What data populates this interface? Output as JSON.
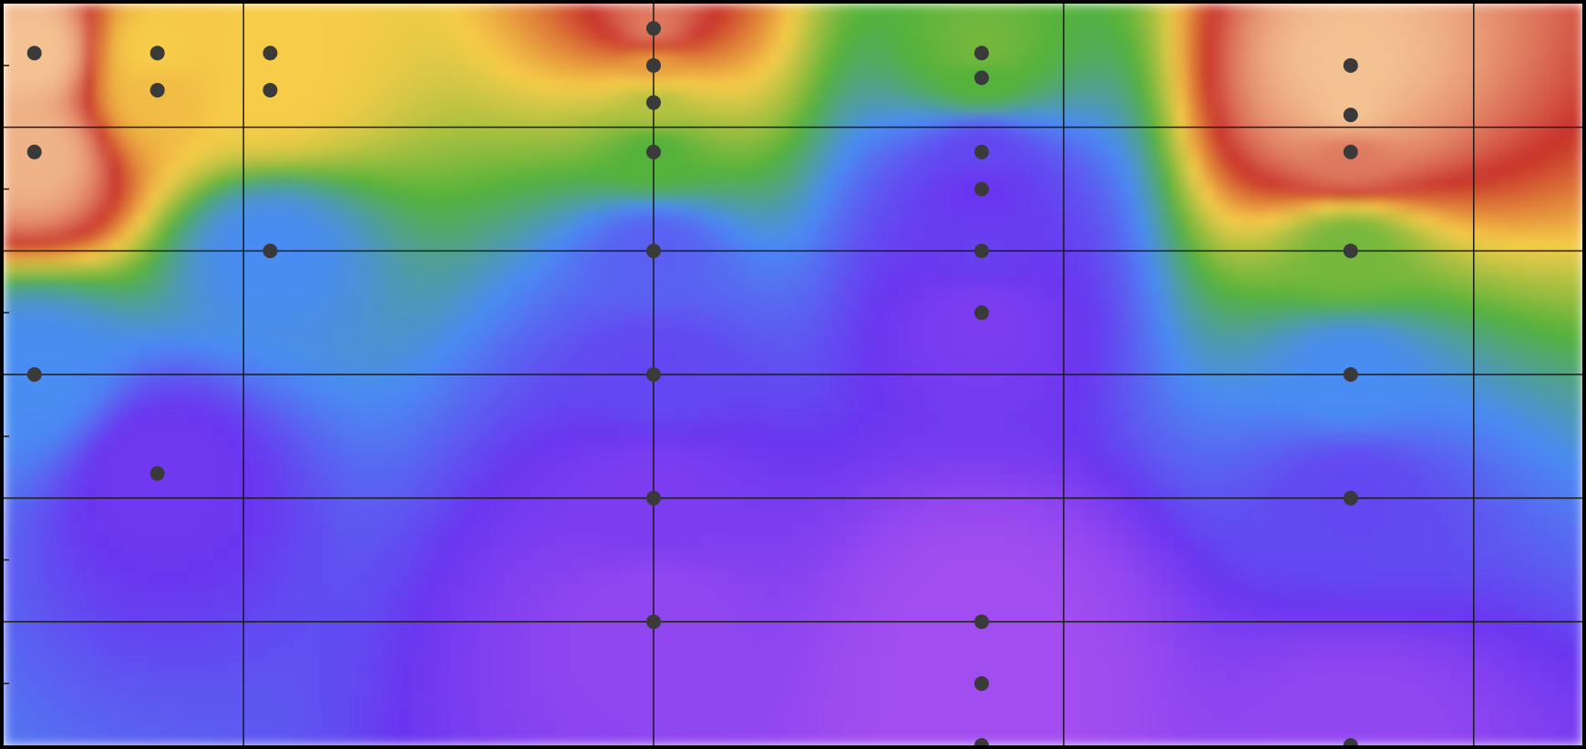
{
  "chart_data": {
    "type": "heatmap",
    "title": "",
    "xlabel": "",
    "ylabel": "",
    "x_range": [
      0,
      7.7
    ],
    "y_range": [
      0,
      6
    ],
    "grid": true,
    "x_gridlines": [
      1.17,
      3.17,
      5.17,
      7.17
    ],
    "y_gridlines": [
      1,
      2,
      3,
      4,
      5
    ],
    "y_minor_ticks": [
      0.5,
      1.5,
      2.5,
      3.5,
      4.5,
      5.5
    ],
    "colors": {
      "level_0": "#a24ef0",
      "level_1": "#6a36f0",
      "level_2": "#4a8cf2",
      "level_3": "#54b23a",
      "level_4": "#f6cc48",
      "level_5": "#c8302a",
      "level_6": "#f4c292",
      "point": "#3a3a3a",
      "grid": "#1a1a1a",
      "frame": "#000000"
    },
    "points": [
      {
        "x": 0.15,
        "y": 5.6,
        "v": 6.0
      },
      {
        "x": 0.15,
        "y": 4.8,
        "v": 5.9
      },
      {
        "x": 0.15,
        "y": 3.0,
        "v": 2.0
      },
      {
        "x": 0.75,
        "y": 5.6,
        "v": 4.0
      },
      {
        "x": 0.75,
        "y": 5.3,
        "v": 4.1
      },
      {
        "x": 0.75,
        "y": 2.2,
        "v": 0.9
      },
      {
        "x": 1.3,
        "y": 5.6,
        "v": 4.0
      },
      {
        "x": 1.3,
        "y": 5.3,
        "v": 4.0
      },
      {
        "x": 1.3,
        "y": 4.0,
        "v": 2.0
      },
      {
        "x": 3.17,
        "y": 5.8,
        "v": 5.5
      },
      {
        "x": 3.17,
        "y": 5.5,
        "v": 4.3
      },
      {
        "x": 3.17,
        "y": 5.2,
        "v": 3.6
      },
      {
        "x": 3.17,
        "y": 4.8,
        "v": 3.0
      },
      {
        "x": 3.17,
        "y": 4.0,
        "v": 1.5
      },
      {
        "x": 3.17,
        "y": 3.0,
        "v": 1.2
      },
      {
        "x": 3.17,
        "y": 2.0,
        "v": 0.7
      },
      {
        "x": 3.17,
        "y": 1.0,
        "v": 0.3
      },
      {
        "x": 4.77,
        "y": 5.6,
        "v": 3.2
      },
      {
        "x": 4.77,
        "y": 5.4,
        "v": 3.0
      },
      {
        "x": 4.77,
        "y": 4.8,
        "v": 1.2
      },
      {
        "x": 4.77,
        "y": 4.5,
        "v": 1.0
      },
      {
        "x": 4.77,
        "y": 4.0,
        "v": 1.1
      },
      {
        "x": 4.77,
        "y": 3.5,
        "v": 0.7
      },
      {
        "x": 4.77,
        "y": 1.0,
        "v": 0.0
      },
      {
        "x": 4.77,
        "y": 0.5,
        "v": 0.0
      },
      {
        "x": 4.77,
        "y": 0.0,
        "v": 0.0
      },
      {
        "x": 6.57,
        "y": 5.5,
        "v": 6.0
      },
      {
        "x": 6.57,
        "y": 5.1,
        "v": 6.0
      },
      {
        "x": 6.57,
        "y": 4.8,
        "v": 5.5
      },
      {
        "x": 6.57,
        "y": 4.0,
        "v": 3.2
      },
      {
        "x": 6.57,
        "y": 3.0,
        "v": 2.0
      },
      {
        "x": 6.57,
        "y": 2.0,
        "v": 1.2
      },
      {
        "x": 6.57,
        "y": 0.0,
        "v": 0.3
      }
    ]
  }
}
